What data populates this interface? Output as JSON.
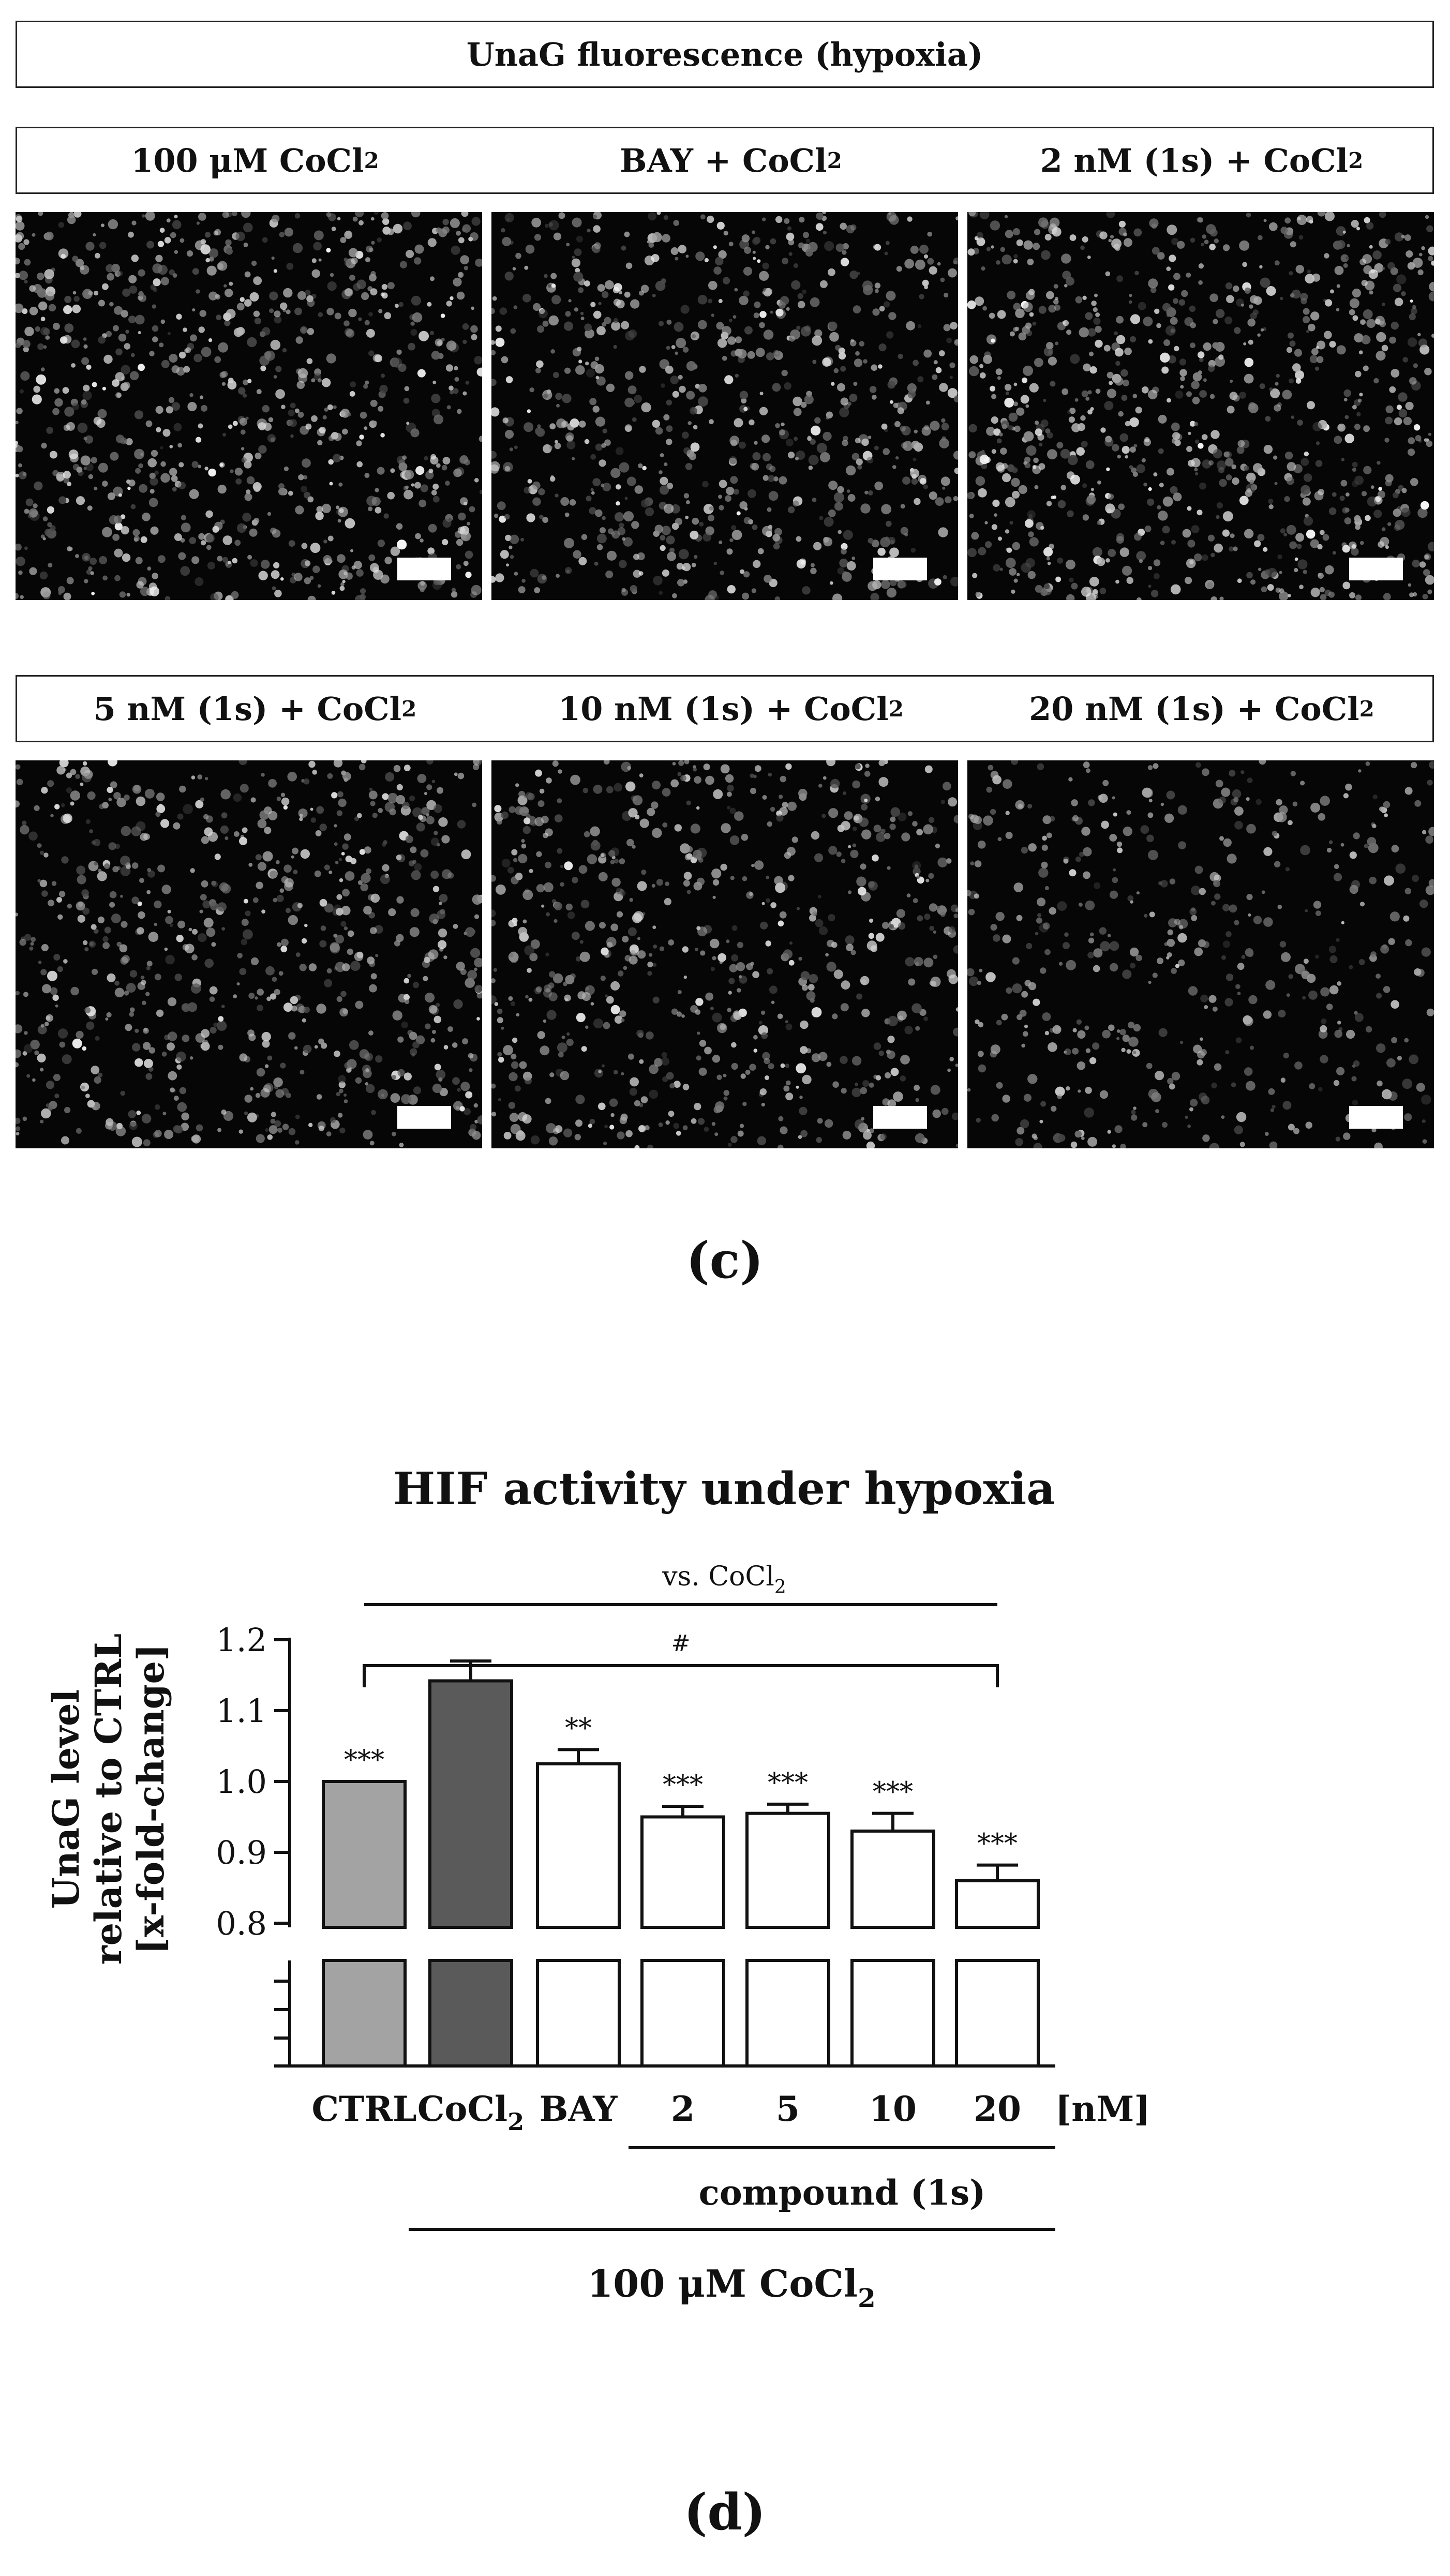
{
  "panel_c": {
    "header": "UnaG fluorescence (hypoxia)",
    "row1": [
      {
        "label": "100 μM CoCl",
        "sub": "2"
      },
      {
        "label": "BAY + CoCl",
        "sub": "2"
      },
      {
        "label": "2 nM (1s) + CoCl",
        "sub": "2"
      }
    ],
    "row2": [
      {
        "label": "5 nM (1s) + CoCl",
        "sub": "2"
      },
      {
        "label": "10 nM (1s) + CoCl",
        "sub": "2"
      },
      {
        "label": "20 nM (1s) + CoCl",
        "sub": "2"
      }
    ],
    "cell_density": [
      1.0,
      0.9,
      1.0,
      0.85,
      0.8,
      0.55
    ],
    "letter": "(c)"
  },
  "chart_data": {
    "type": "bar",
    "title": "HIF activity under hypoxia",
    "ylabel_lines": [
      "UnaG level",
      "relative to CTRL",
      "[x-fold-change]"
    ],
    "categories": [
      "CTRL",
      "CoCl2",
      "BAY",
      "2",
      "5",
      "10",
      "20"
    ],
    "category_labels": [
      {
        "text": "CTRL",
        "sub": ""
      },
      {
        "text": "CoCl",
        "sub": "2"
      },
      {
        "text": "BAY",
        "sub": ""
      },
      {
        "text": "2",
        "sub": ""
      },
      {
        "text": "5",
        "sub": ""
      },
      {
        "text": "10",
        "sub": ""
      },
      {
        "text": "20",
        "sub": ""
      }
    ],
    "values": [
      1.0,
      1.142,
      1.025,
      0.95,
      0.955,
      0.93,
      0.86
    ],
    "errors": [
      0.0,
      0.028,
      0.02,
      0.015,
      0.013,
      0.025,
      0.022
    ],
    "bar_colors": [
      "#a3a3a3",
      "#5a5a5a",
      "#ffffff",
      "#ffffff",
      "#ffffff",
      "#ffffff",
      "#ffffff"
    ],
    "significance": [
      "***",
      "",
      "**",
      "***",
      "***",
      "***",
      "***"
    ],
    "ylim": [
      0.8,
      1.2
    ],
    "yticks": [
      "0.8",
      "0.9",
      "1.0",
      "1.1",
      "1.2"
    ],
    "axis_break": true,
    "unit_label": "[nM]",
    "comparison_label": "vs. CoCl",
    "comparison_sub": "2",
    "hash_label": "#",
    "group_compound": "compound (1s)",
    "group_cocl2": "100 μM CoCl",
    "group_cocl2_sub": "2",
    "letter": "(d)"
  }
}
